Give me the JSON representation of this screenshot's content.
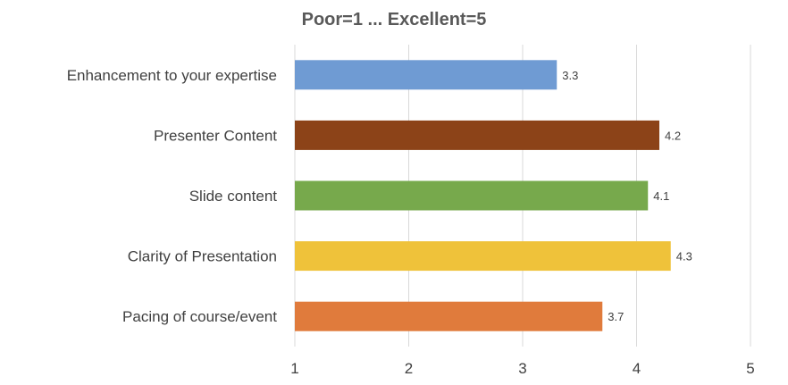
{
  "chart_data": {
    "type": "bar",
    "orientation": "horizontal",
    "title": "Poor=1 ... Excellent=5",
    "categories": [
      "Enhancement to your expertise",
      "Presenter Content",
      "Slide content",
      "Clarity of Presentation",
      "Pacing of course/event"
    ],
    "values": [
      3.3,
      4.2,
      4.1,
      4.3,
      3.7
    ],
    "data_labels": [
      "3.3",
      "4.2",
      "4.1",
      "4.3",
      "3.7"
    ],
    "colors": [
      "#6f9bd3",
      "#8c4318",
      "#77a94c",
      "#efc23a",
      "#e07b3c"
    ],
    "xlim": [
      1,
      5
    ],
    "ticks": [
      "1",
      "2",
      "3",
      "4",
      "5"
    ],
    "grid": true,
    "legend": "none"
  }
}
